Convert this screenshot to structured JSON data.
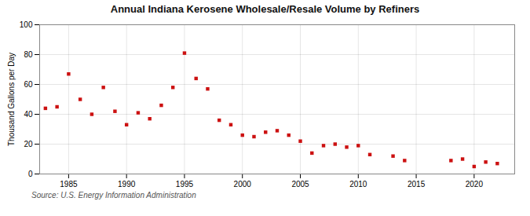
{
  "chart_data": {
    "type": "scatter",
    "title": "Annual Indiana Kerosene Wholesale/Resale Volume by Refiners",
    "ylabel": "Thousand Gallons per Day",
    "source": "Source: U.S. Energy Information Administration",
    "x": [
      1983,
      1984,
      1985,
      1986,
      1987,
      1988,
      1989,
      1990,
      1991,
      1992,
      1993,
      1994,
      1995,
      1996,
      1997,
      1998,
      1999,
      2000,
      2001,
      2002,
      2003,
      2004,
      2005,
      2006,
      2007,
      2008,
      2009,
      2010,
      2011,
      2013,
      2014,
      2018,
      2019,
      2020,
      2021,
      2022
    ],
    "values": [
      44,
      45,
      67,
      50,
      40,
      58,
      42,
      33,
      41,
      37,
      46,
      58,
      81,
      64,
      57,
      36,
      33,
      26,
      25,
      28,
      29,
      26,
      22,
      14,
      19,
      20,
      18,
      19,
      13,
      12,
      9,
      9,
      10,
      5,
      8,
      7
    ],
    "color": "#cc1111",
    "marker": "square",
    "xlim": [
      1982.5,
      2023.5
    ],
    "ylim": [
      0,
      100
    ],
    "xticks": [
      1985,
      1990,
      1995,
      2000,
      2005,
      2010,
      2015,
      2020
    ],
    "yticks": [
      0,
      20,
      40,
      60,
      80,
      100
    ],
    "grid": true
  }
}
